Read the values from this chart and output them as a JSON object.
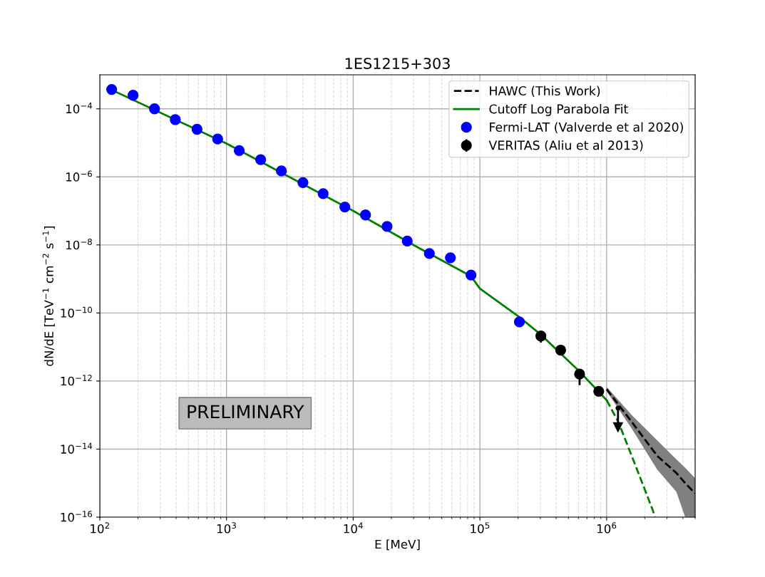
{
  "chart_data": {
    "type": "line",
    "title": "1ES1215+303",
    "xlabel": "E [MeV]",
    "ylabel": "dN/dE [TeV$^{−1}$ cm$^{−2}$ s$^{−1}$]",
    "log": "xy",
    "grid": true,
    "legend": "top right",
    "xlim": [
      100,
      5000000
    ],
    "ylim": [
      1e-16,
      0.001
    ],
    "xticks": [
      {
        "value": 100,
        "label": "10$^{2}$"
      },
      {
        "value": 1000,
        "label": "10$^{3}$"
      },
      {
        "value": 10000,
        "label": "10$^{4}$"
      },
      {
        "value": 100000,
        "label": "10$^{5}$"
      },
      {
        "value": 1000000,
        "label": "10$^{6}$"
      }
    ],
    "yticks": [
      {
        "value": 1e-16,
        "label": "10$^{−16}$"
      },
      {
        "value": 1e-14,
        "label": "10$^{−14}$"
      },
      {
        "value": 1e-12,
        "label": "10$^{−12}$"
      },
      {
        "value": 1e-10,
        "label": "10$^{−10}$"
      },
      {
        "value": 1e-08,
        "label": "10$^{−8}$"
      },
      {
        "value": 1e-06,
        "label": "10$^{−6}$"
      },
      {
        "value": 0.0001,
        "label": "10$^{−4}$"
      }
    ],
    "annotations": [
      "PRELIMINARY"
    ],
    "series": [
      {
        "name": "HAWC (This Work)",
        "color": "#000000",
        "line_style": "dashed",
        "x": [
          1000000,
          1580000,
          2510000,
          3550000,
          4170000,
          5000000
        ],
        "values": [
          5.75e-13,
          6.3e-14,
          6.3e-15,
          2e-15,
          1e-15,
          5e-16
        ],
        "lower": [
          5e-13,
          4e-14,
          2.5e-15,
          5.6e-16,
          1e-16,
          1e-16
        ],
        "upper": [
          6.8e-13,
          1e-13,
          1.8e-14,
          5e-15,
          2.8e-15,
          1.4e-15
        ]
      },
      {
        "name": "Cutoff Log Parabola Fit",
        "color": "#008000",
        "line_style": "solid",
        "x": [
          124,
          1000,
          10000,
          31600,
          85100,
          100000,
          205000,
          303000,
          612000,
          1000000
        ],
        "values": [
          0.00036,
          9.5e-06,
          1e-07,
          8.9e-09,
          1.2e-09,
          5.2e-10,
          7.6e-11,
          2.3e-11,
          1.9e-12,
          2.75e-13
        ]
      },
      {
        "color": "#008000",
        "line_style": "dashed",
        "x": [
          1000000,
          1240000,
          1680000,
          2330000,
          2400000
        ],
        "values": [
          2.75e-13,
          6.2e-14,
          3.5e-15,
          1.5e-16,
          1e-16
        ]
      },
      {
        "type": "scatter",
        "name": "Fermi-LAT (Valverde et al 2020)",
        "color": "#0000ff",
        "marker": "circle",
        "x": [
          124,
          183,
          270,
          394,
          585,
          851,
          1260,
          1860,
          2710,
          4010,
          5790,
          8590,
          12500,
          18500,
          26700,
          39900,
          58500,
          85100,
          205000
        ],
        "values": [
          0.00037,
          0.00025,
          0.0001,
          4.8e-05,
          2.5e-05,
          1.3e-05,
          5.9e-06,
          3.2e-06,
          1.5e-06,
          6.8e-07,
          3.2e-07,
          1.3e-07,
          7.6e-08,
          3.5e-08,
          1.3e-08,
          5.6e-09,
          4.2e-09,
          1.3e-09,
          5.5e-11
        ]
      },
      {
        "type": "scatter",
        "name": "VERITAS (Aliu et al 2013)",
        "color": "#000000",
        "marker": "circle",
        "x": [
          303000,
          434000,
          612000,
          867000
        ],
        "values": [
          2.1e-11,
          8.1e-12,
          1.6e-12,
          5e-13
        ],
        "errors": [
          [
            1.35e-11,
            2.1e-11
          ],
          null,
          [
            7.6e-13,
            2e-12
          ],
          null
        ]
      },
      {
        "type": "scatter",
        "marker": "triangle",
        "color": "#000000",
        "x": [
          1230000
        ],
        "values": [
          1.6e-13
        ],
        "errors": [
          [
            4.4e-14,
            1.6e-13
          ]
        ]
      }
    ]
  }
}
